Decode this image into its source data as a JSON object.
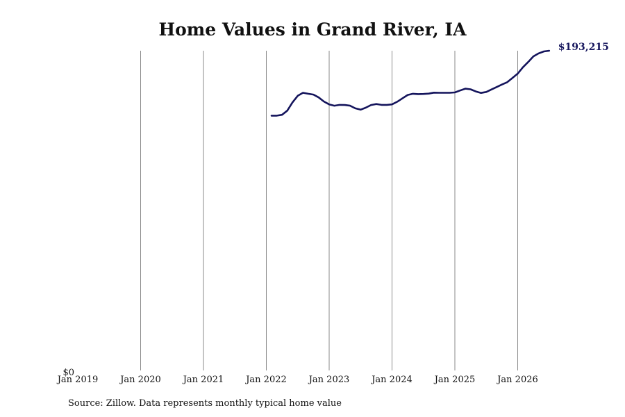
{
  "chart_data": {
    "type": "line",
    "title": "Home Values in Grand River, IA",
    "xlabel": "",
    "ylabel": "",
    "x_tick_labels": [
      "Jan 2019",
      "Jan 2020",
      "Jan 2021",
      "Jan 2022",
      "Jan 2023",
      "Jan 2024",
      "Jan 2025",
      "Jan 2026"
    ],
    "y_tick_labels": [
      "$0"
    ],
    "ylim": [
      0,
      193215
    ],
    "grid": "vertical",
    "series": [
      {
        "color": "#14145c",
        "end_label": "$193,215",
        "points": [
          [
            "2022-02",
            154000
          ],
          [
            "2022-03",
            154000
          ],
          [
            "2022-04",
            154500
          ],
          [
            "2022-05",
            157000
          ],
          [
            "2022-06",
            162000
          ],
          [
            "2022-07",
            166000
          ],
          [
            "2022-08",
            167800
          ],
          [
            "2022-09",
            167200
          ],
          [
            "2022-10",
            166700
          ],
          [
            "2022-11",
            165000
          ],
          [
            "2022-12",
            162500
          ],
          [
            "2023-01",
            160800
          ],
          [
            "2023-02",
            160000
          ],
          [
            "2023-03",
            160500
          ],
          [
            "2023-04",
            160400
          ],
          [
            "2023-05",
            160000
          ],
          [
            "2023-06",
            158400
          ],
          [
            "2023-07",
            157600
          ],
          [
            "2023-08",
            158800
          ],
          [
            "2023-09",
            160400
          ],
          [
            "2023-10",
            161000
          ],
          [
            "2023-11",
            160500
          ],
          [
            "2023-12",
            160500
          ],
          [
            "2024-01",
            160800
          ],
          [
            "2024-02",
            162400
          ],
          [
            "2024-03",
            164500
          ],
          [
            "2024-04",
            166500
          ],
          [
            "2024-05",
            167200
          ],
          [
            "2024-06",
            167000
          ],
          [
            "2024-07",
            167100
          ],
          [
            "2024-08",
            167300
          ],
          [
            "2024-09",
            167900
          ],
          [
            "2024-10",
            167800
          ],
          [
            "2024-11",
            167800
          ],
          [
            "2024-12",
            167800
          ],
          [
            "2025-01",
            168000
          ],
          [
            "2025-02",
            169200
          ],
          [
            "2025-03",
            170300
          ],
          [
            "2025-04",
            169900
          ],
          [
            "2025-05",
            168600
          ],
          [
            "2025-06",
            167700
          ],
          [
            "2025-07",
            168300
          ],
          [
            "2025-08",
            169800
          ],
          [
            "2025-09",
            171300
          ],
          [
            "2025-10",
            172800
          ],
          [
            "2025-11",
            174200
          ],
          [
            "2025-12",
            176800
          ],
          [
            "2026-01",
            179400
          ],
          [
            "2026-02",
            183200
          ],
          [
            "2026-03",
            186400
          ],
          [
            "2026-04",
            189800
          ],
          [
            "2026-05",
            191600
          ],
          [
            "2026-06",
            192800
          ],
          [
            "2026-07",
            193215
          ]
        ]
      }
    ]
  },
  "source_note": "Source: Zillow. Data represents monthly typical home value"
}
